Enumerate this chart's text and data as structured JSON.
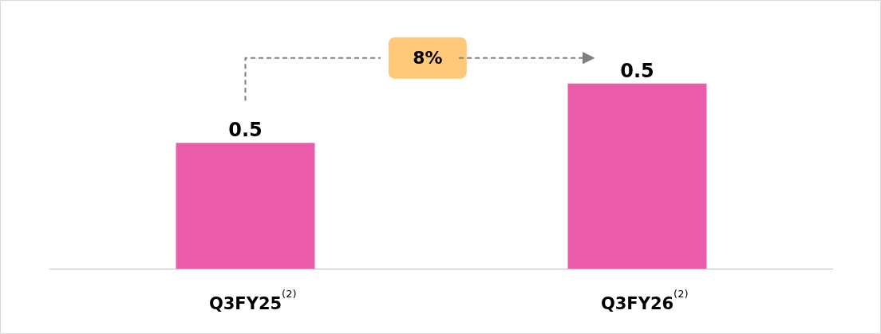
{
  "chart_data": {
    "type": "bar",
    "ylim": [
      0.375,
      0.556
    ],
    "categories": [
      "Q3FY25$^{(2)}$",
      "Q3FY26$^{(2)}$"
    ],
    "values": [
      0.46,
      0.5
    ],
    "value_labels": [
      "0.5",
      "0.5"
    ],
    "color": "#ea5ba9",
    "annotations": [
      "8%"
    ]
  }
}
